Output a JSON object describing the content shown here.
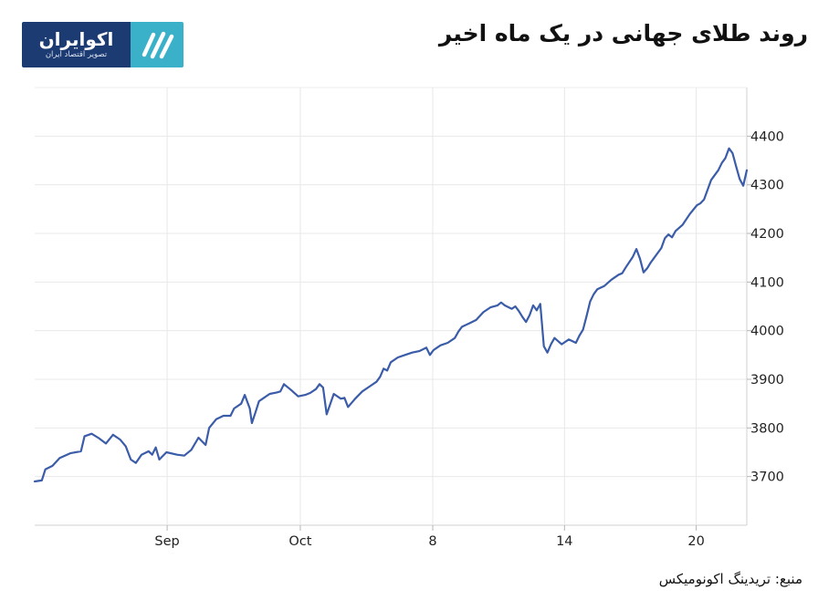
{
  "title": "روند طلای جهانی در یک ماه اخیر",
  "source": "منبع: تریدینگ اکونومیکس",
  "logo": {
    "name": "اکوایران",
    "tagline": "تصویر اقتصاد ایران",
    "text_background": "#1c3b73",
    "mark_background": "#3bb0c9",
    "icon": "ekoiran-stripes-icon"
  },
  "chart_data": {
    "type": "line",
    "title": "روند طلای جهانی در یک ماه اخیر",
    "xlabel": "",
    "ylabel": "",
    "grid": true,
    "legend": "none",
    "line_color": "#3b5ca8",
    "ylim": [
      3600,
      4500
    ],
    "xlim": [
      0,
      100
    ],
    "yticks": [
      3700,
      3800,
      3900,
      4000,
      4100,
      4200,
      4300,
      4400
    ],
    "xticks": [
      {
        "label": "Sep",
        "x": 18.6
      },
      {
        "label": "Oct",
        "x": 37.3
      },
      {
        "label": "8",
        "x": 55.9
      },
      {
        "label": "14",
        "x": 74.4
      },
      {
        "label": "20",
        "x": 92.9
      }
    ],
    "series": [
      {
        "values": [
          [
            0,
            3690
          ],
          [
            1.0,
            3692
          ],
          [
            1.5,
            3715
          ],
          [
            2.5,
            3722
          ],
          [
            3.5,
            3738
          ],
          [
            5.0,
            3748
          ],
          [
            6.5,
            3752
          ],
          [
            7.0,
            3783
          ],
          [
            8.0,
            3788
          ],
          [
            9.0,
            3779
          ],
          [
            10.0,
            3768
          ],
          [
            11.0,
            3786
          ],
          [
            12.0,
            3776
          ],
          [
            12.8,
            3762
          ],
          [
            13.5,
            3735
          ],
          [
            14.2,
            3728
          ],
          [
            15.0,
            3745
          ],
          [
            16.0,
            3752
          ],
          [
            16.5,
            3745
          ],
          [
            17.0,
            3760
          ],
          [
            17.5,
            3735
          ],
          [
            18.5,
            3750
          ],
          [
            20.0,
            3745
          ],
          [
            21.0,
            3743
          ],
          [
            22.0,
            3755
          ],
          [
            23.0,
            3780
          ],
          [
            24.0,
            3765
          ],
          [
            24.5,
            3800
          ],
          [
            25.5,
            3818
          ],
          [
            26.5,
            3825
          ],
          [
            27.5,
            3825
          ],
          [
            28.0,
            3840
          ],
          [
            29.0,
            3850
          ],
          [
            29.5,
            3868
          ],
          [
            30.2,
            3840
          ],
          [
            30.5,
            3810
          ],
          [
            31.0,
            3832
          ],
          [
            31.5,
            3855
          ],
          [
            32.0,
            3860
          ],
          [
            33.0,
            3870
          ],
          [
            34.0,
            3873
          ],
          [
            34.5,
            3875
          ],
          [
            35.0,
            3890
          ],
          [
            36.0,
            3878
          ],
          [
            37.0,
            3865
          ],
          [
            38.0,
            3868
          ],
          [
            38.7,
            3872
          ],
          [
            39.5,
            3880
          ],
          [
            40.0,
            3890
          ],
          [
            40.5,
            3883
          ],
          [
            41.0,
            3828
          ],
          [
            42.0,
            3870
          ],
          [
            43.0,
            3860
          ],
          [
            43.5,
            3862
          ],
          [
            44.0,
            3843
          ],
          [
            45.0,
            3860
          ],
          [
            46.0,
            3875
          ],
          [
            47.0,
            3885
          ],
          [
            48.0,
            3895
          ],
          [
            48.5,
            3905
          ],
          [
            49.0,
            3922
          ],
          [
            49.5,
            3918
          ],
          [
            50.0,
            3935
          ],
          [
            51.0,
            3945
          ],
          [
            52.0,
            3950
          ],
          [
            53.0,
            3955
          ],
          [
            54.0,
            3958
          ],
          [
            55.0,
            3965
          ],
          [
            55.5,
            3950
          ],
          [
            56.0,
            3960
          ],
          [
            56.5,
            3965
          ],
          [
            57.0,
            3970
          ],
          [
            58.0,
            3975
          ],
          [
            59.0,
            3985
          ],
          [
            59.5,
            3998
          ],
          [
            60.0,
            4008
          ],
          [
            61.0,
            4015
          ],
          [
            62.0,
            4022
          ],
          [
            63.0,
            4038
          ],
          [
            64.0,
            4048
          ],
          [
            65.0,
            4052
          ],
          [
            65.5,
            4058
          ],
          [
            66.0,
            4052
          ],
          [
            67.0,
            4045
          ],
          [
            67.5,
            4050
          ],
          [
            68.0,
            4040
          ],
          [
            68.5,
            4028
          ],
          [
            69.0,
            4018
          ],
          [
            69.5,
            4032
          ],
          [
            70.0,
            4052
          ],
          [
            70.5,
            4042
          ],
          [
            71.0,
            4055
          ],
          [
            71.5,
            3968
          ],
          [
            72.0,
            3955
          ],
          [
            72.5,
            3972
          ],
          [
            73.0,
            3985
          ],
          [
            74.0,
            3972
          ],
          [
            75.0,
            3982
          ],
          [
            76.0,
            3975
          ],
          [
            76.5,
            3990
          ],
          [
            77.0,
            4002
          ],
          [
            77.5,
            4030
          ],
          [
            78.0,
            4060
          ],
          [
            78.5,
            4075
          ],
          [
            79.0,
            4085
          ],
          [
            80.0,
            4092
          ],
          [
            81.0,
            4105
          ],
          [
            82.0,
            4115
          ],
          [
            82.5,
            4118
          ],
          [
            83.0,
            4130
          ],
          [
            84.0,
            4152
          ],
          [
            84.5,
            4168
          ],
          [
            85.0,
            4148
          ],
          [
            85.5,
            4120
          ],
          [
            86.0,
            4128
          ],
          [
            86.5,
            4140
          ],
          [
            87.0,
            4150
          ],
          [
            88.0,
            4170
          ],
          [
            88.5,
            4190
          ],
          [
            89.0,
            4198
          ],
          [
            89.5,
            4192
          ],
          [
            90.0,
            4205
          ],
          [
            91.0,
            4218
          ],
          [
            92.0,
            4240
          ],
          [
            93.0,
            4258
          ],
          [
            93.5,
            4262
          ],
          [
            94.0,
            4270
          ],
          [
            95.0,
            4310
          ],
          [
            96.0,
            4330
          ],
          [
            96.5,
            4345
          ],
          [
            97.0,
            4355
          ],
          [
            97.5,
            4375
          ],
          [
            98.0,
            4365
          ],
          [
            98.5,
            4338
          ],
          [
            99.0,
            4312
          ],
          [
            99.5,
            4298
          ],
          [
            100.0,
            4330
          ]
        ]
      }
    ]
  }
}
